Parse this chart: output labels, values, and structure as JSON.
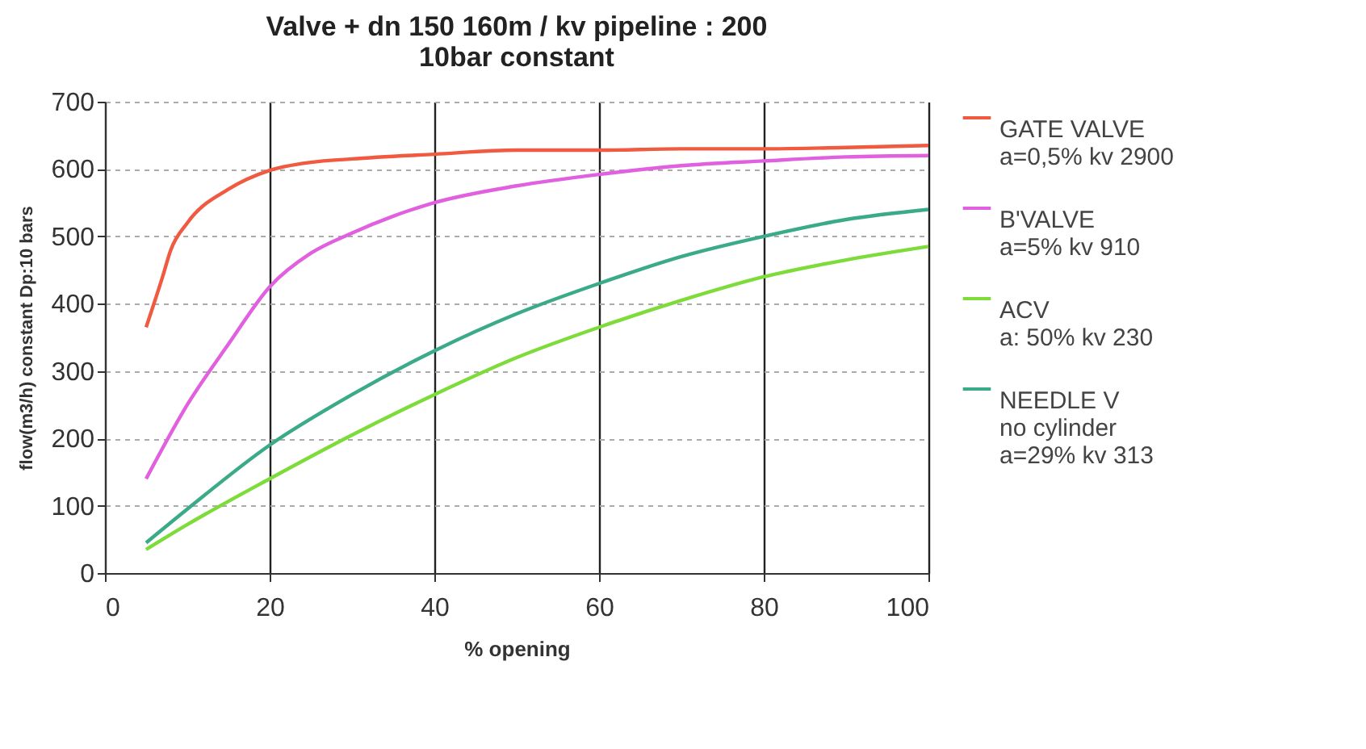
{
  "chart_data": {
    "type": "line",
    "title": "Valve + dn 150 160m / kv pipeline : 200\n10bar constant",
    "xlabel": "% opening",
    "ylabel": "flow(m3/h) constant Dp:10 bars",
    "xlim": [
      0,
      100
    ],
    "xticks": [
      0,
      20,
      40,
      60,
      80,
      100
    ],
    "ylim": [
      0,
      700
    ],
    "yticks": [
      0,
      100,
      200,
      300,
      400,
      500,
      600,
      700
    ],
    "grid": true,
    "legend": "right",
    "marker": "none",
    "line_style": "solid",
    "series": [
      {
        "name": "GATE VALVE\na=0,5%  kv 2900",
        "color": "#f05a40",
        "x": [
          5,
          7,
          8,
          10,
          15,
          20,
          25,
          30,
          40,
          50,
          60,
          70,
          80,
          90,
          100
        ],
        "values": [
          365,
          440,
          480,
          520,
          570,
          598,
          610,
          615,
          622,
          628,
          628,
          630,
          630,
          632,
          635
        ]
      },
      {
        "name": "B'VALVE\na=5% kv 910",
        "color": "#e060e0",
        "x": [
          5,
          10,
          15,
          20,
          25,
          30,
          35,
          40,
          50,
          60,
          70,
          80,
          90,
          100
        ],
        "values": [
          140,
          250,
          340,
          425,
          475,
          505,
          530,
          550,
          575,
          592,
          605,
          612,
          618,
          620
        ]
      },
      {
        "name": "ACV\na: 50% kv 230",
        "color": "#7ddc3a",
        "x": [
          5,
          10,
          20,
          30,
          40,
          50,
          60,
          70,
          80,
          90,
          100
        ],
        "values": [
          35,
          72,
          140,
          205,
          265,
          320,
          365,
          405,
          440,
          465,
          485
        ]
      },
      {
        "name": "NEEDLE V\nno cylinder\na=29% kv 313",
        "color": "#3aaa88",
        "x": [
          5,
          10,
          20,
          30,
          40,
          50,
          60,
          70,
          80,
          90,
          100
        ],
        "values": [
          45,
          95,
          190,
          265,
          330,
          385,
          430,
          470,
          500,
          525,
          540
        ]
      }
    ]
  }
}
